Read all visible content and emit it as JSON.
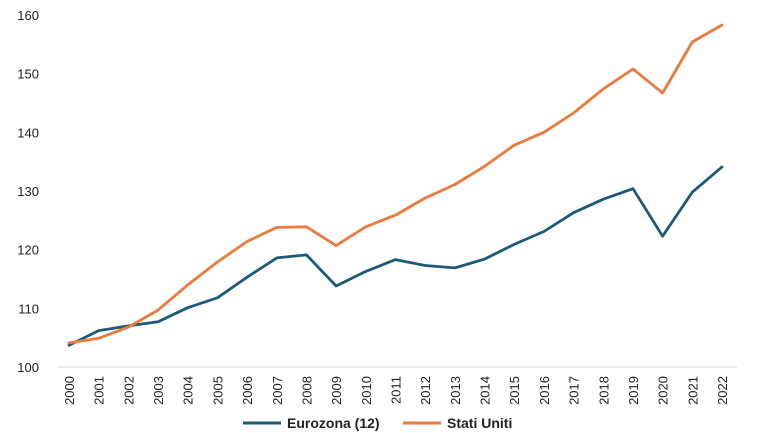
{
  "chart_data": {
    "type": "line",
    "title": "",
    "xlabel": "",
    "ylabel": "",
    "ylim": [
      100,
      160
    ],
    "yticks": [
      100,
      110,
      120,
      130,
      140,
      150,
      160
    ],
    "grid": false,
    "legend_position": "bottom",
    "categories": [
      "2000",
      "2001",
      "2002",
      "2003",
      "2004",
      "2005",
      "2006",
      "2007",
      "2008",
      "2009",
      "2010",
      "2011",
      "2012",
      "2013",
      "2014",
      "2015",
      "2016",
      "2017",
      "2018",
      "2019",
      "2020",
      "2021",
      "2022"
    ],
    "series": [
      {
        "name": "Eurozona (12)",
        "color": "#1d5a7a",
        "values": [
          103.7,
          106.2,
          107.0,
          107.7,
          110.1,
          111.8,
          115.3,
          118.6,
          119.1,
          113.8,
          116.3,
          118.3,
          117.3,
          116.9,
          118.4,
          120.9,
          123.1,
          126.3,
          128.6,
          130.4,
          122.3,
          129.8,
          134.1
        ]
      },
      {
        "name": "Stati Uniti",
        "color": "#ec7a3c",
        "values": [
          104.1,
          104.9,
          106.8,
          109.7,
          114.0,
          117.9,
          121.4,
          123.8,
          123.9,
          120.7,
          123.9,
          125.9,
          128.8,
          131.1,
          134.2,
          137.8,
          140.0,
          143.3,
          147.4,
          150.8,
          146.7,
          155.4,
          158.3
        ]
      }
    ]
  }
}
